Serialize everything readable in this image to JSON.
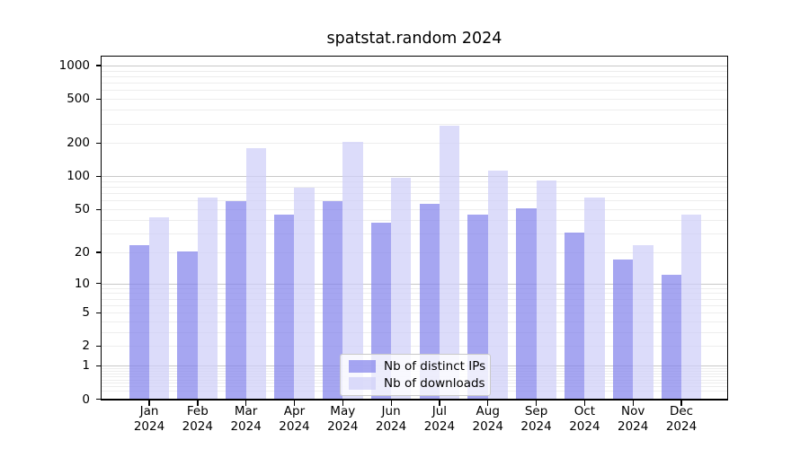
{
  "chart_data": {
    "type": "bar",
    "title": "spatstat.random 2024",
    "categories": [
      "Jan",
      "Feb",
      "Mar",
      "Apr",
      "May",
      "Jun",
      "Jul",
      "Aug",
      "Sep",
      "Oct",
      "Nov",
      "Dec"
    ],
    "x_year_label": "2024",
    "series": [
      {
        "name": "Nb of distinct IPs",
        "color": "rgba(132,132,236,0.72)",
        "values": [
          23,
          20,
          59,
          44,
          59,
          37,
          56,
          44,
          51,
          30,
          17,
          12
        ]
      },
      {
        "name": "Nb of downloads",
        "color": "rgba(206,206,248,0.72)",
        "values": [
          42,
          64,
          180,
          78,
          205,
          96,
          282,
          112,
          90,
          64,
          23,
          44
        ]
      }
    ],
    "y_axis": {
      "scale": "log10(value+1)",
      "tick_values": [
        0,
        1,
        2,
        5,
        10,
        20,
        50,
        100,
        200,
        500,
        1000
      ],
      "tick_labels": [
        "0",
        "1",
        "2",
        "5",
        "10",
        "20",
        "50",
        "100",
        "200",
        "500",
        "1000"
      ],
      "ylim": [
        0,
        1200
      ],
      "grid": true,
      "major_grid_values": [
        1,
        10,
        100,
        1000
      ]
    },
    "legend": {
      "position": "bottom-center-inside"
    },
    "colors": {
      "bar_distinct_ips": "rgba(132,132,236,0.72)",
      "bar_downloads": "rgba(206,206,248,0.72)",
      "grid_major": "#c8c8c8",
      "grid_minor": "#ededed",
      "axis": "#000000",
      "background": "#ffffff"
    }
  }
}
